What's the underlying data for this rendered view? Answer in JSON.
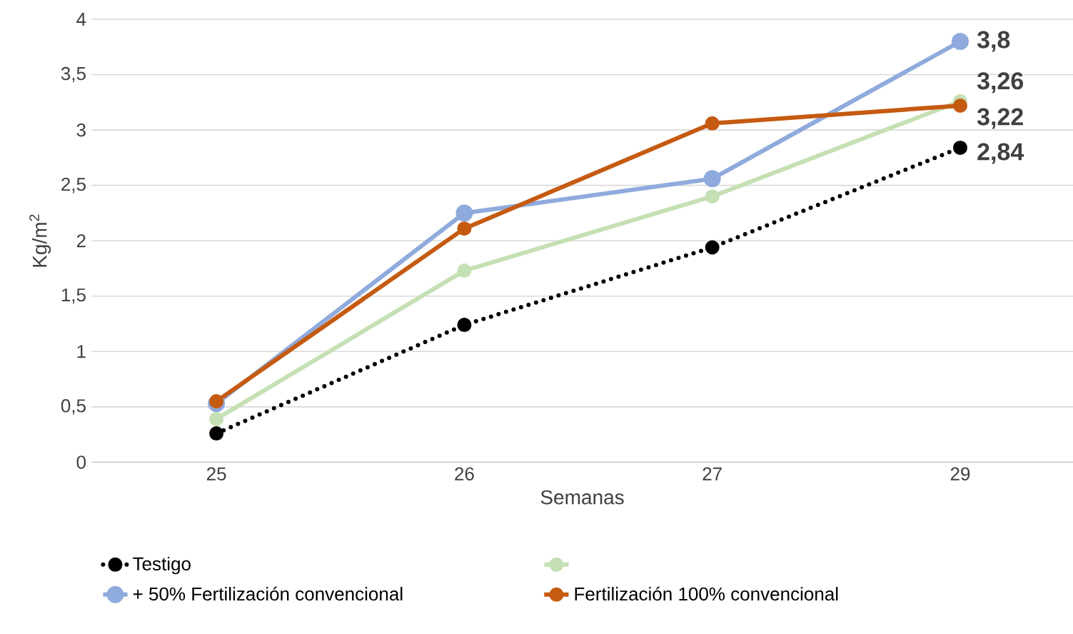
{
  "chart_data": {
    "type": "line",
    "xlabel": "Semanas",
    "ylabel": "Kg/m$^{2}$",
    "categories": [
      "25",
      "26",
      "27",
      "29"
    ],
    "series": [
      {
        "name": "Testigo",
        "color": "#000000",
        "line_style": "dotted",
        "values": [
          0.26,
          1.24,
          1.94,
          2.84
        ],
        "value_labels": [
          null,
          null,
          null,
          "2,84"
        ]
      },
      {
        "color": "#c5e0b4",
        "line_style": "solid",
        "values": [
          0.39,
          1.73,
          2.4,
          3.26
        ],
        "value_labels": [
          null,
          null,
          null,
          "3,26"
        ]
      },
      {
        "name": "+ 50% Fertilización convencional",
        "color": "#8faadc",
        "line_style": "solid",
        "values": [
          0.53,
          2.25,
          2.56,
          3.8
        ],
        "value_labels": [
          null,
          null,
          null,
          "3,8"
        ]
      },
      {
        "name": "Fertilización 100% convencional",
        "color": "#c55a11",
        "line_style": "solid",
        "values": [
          0.55,
          2.11,
          3.06,
          3.22
        ],
        "value_labels": [
          null,
          null,
          null,
          "3,22"
        ]
      }
    ],
    "ylim": [
      0,
      4
    ],
    "yticks": [
      0,
      {
        "value": 0.5,
        "label": "0,5"
      },
      1,
      {
        "value": 1.5,
        "label": "1,5"
      },
      2,
      {
        "value": 2.5,
        "label": "2,5"
      },
      3,
      {
        "value": 3.5,
        "label": "3,5"
      },
      4
    ],
    "grid": "y",
    "legend": "bottom",
    "marker": "circle"
  }
}
